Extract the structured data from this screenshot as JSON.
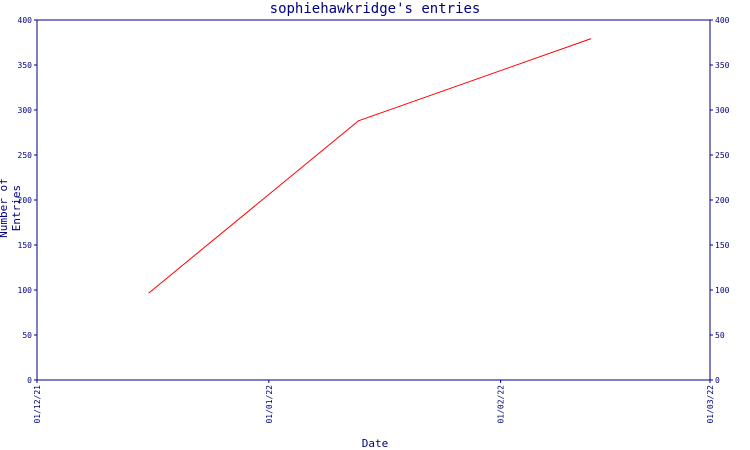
{
  "chart_data": {
    "type": "line",
    "title": "sophiehawkridge's entries",
    "xlabel": "Date",
    "ylabel": "Number of Entries",
    "x_ticks": [
      "01/12/21",
      "01/01/22",
      "01/02/22",
      "01/03/22"
    ],
    "y_ticks": [
      0,
      50,
      100,
      150,
      200,
      250,
      300,
      350,
      400
    ],
    "ylim": [
      0,
      400
    ],
    "xlim": [
      "2021-12-01",
      "2022-03-01"
    ],
    "grid": false,
    "series": [
      {
        "color": "#ff0000",
        "points": [
          {
            "x": "2021-12-16",
            "y": 97
          },
          {
            "x": "2022-01-13",
            "y": 288
          },
          {
            "x": "2022-02-13",
            "y": 379
          }
        ]
      }
    ],
    "axis_color": "#000080"
  }
}
